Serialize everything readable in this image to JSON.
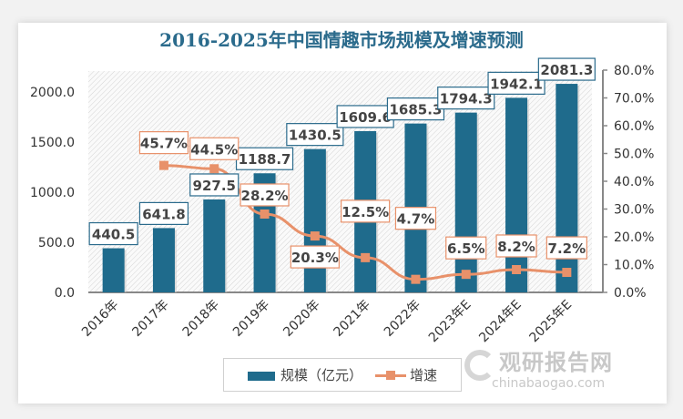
{
  "chart_data": {
    "type": "bar+line",
    "title": "2016-2025年中国情趣市场规模及增速预测",
    "categories": [
      "2016年",
      "2017年",
      "2018年",
      "2019年",
      "2020年",
      "2021年",
      "2022年",
      "2023年E",
      "2024年E",
      "2025年E"
    ],
    "series": [
      {
        "name": "规模（亿元）",
        "type": "bar",
        "axis": "left",
        "color": "#1f6b8c",
        "values": [
          440.5,
          641.8,
          927.5,
          1188.7,
          1430.5,
          1609.6,
          1685.3,
          1794.3,
          1942.1,
          2081.3
        ],
        "labels": [
          "440.5",
          "641.8",
          "927.5",
          "1188.7",
          "1430.5",
          "1609.6",
          "1685.3",
          "1794.3",
          "1942.1",
          "2081.3"
        ]
      },
      {
        "name": "增速",
        "type": "line",
        "axis": "right",
        "color": "#e8916a",
        "values": [
          null,
          45.7,
          44.5,
          28.2,
          20.3,
          12.5,
          4.7,
          6.5,
          8.2,
          7.2
        ],
        "labels": [
          "",
          "45.7%",
          "44.5%",
          "28.2%",
          "20.3%",
          "12.5%",
          "4.7%",
          "6.5%",
          "8.2%",
          "7.2%"
        ]
      }
    ],
    "left_axis": {
      "ylim": [
        0,
        2000
      ],
      "ticks": [
        "0.0",
        "500.0",
        "1000.0",
        "1500.0",
        "2000.0"
      ]
    },
    "right_axis": {
      "ylim": [
        0,
        80
      ],
      "ticks": [
        "0.0%",
        "10.0%",
        "20.0%",
        "30.0%",
        "40.0%",
        "50.0%",
        "60.0%",
        "70.0%",
        "80.0%"
      ]
    },
    "legend_position": "bottom",
    "grid": false
  },
  "legend": {
    "bar_label": "规模（亿元）",
    "line_label": "增速"
  },
  "watermark": {
    "cn": "观研报告网",
    "en": "chinabaogao.com"
  }
}
